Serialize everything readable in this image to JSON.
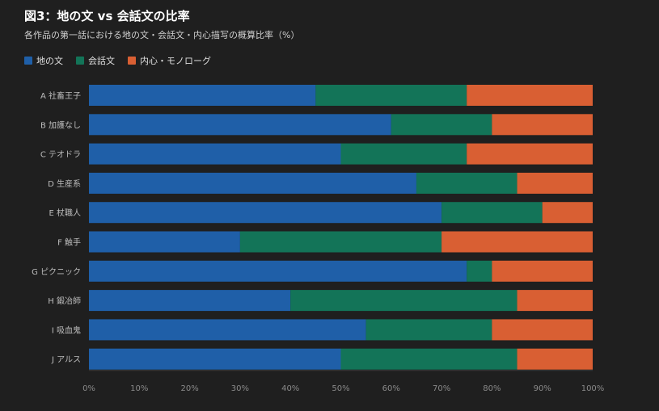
{
  "title": "図3：地の文 vs 会話文の比率",
  "subtitle": "各作品の第一話における地の文・会話文・内心描写の概算比率（%）",
  "colors": {
    "narration": "#1f5fa8",
    "dialogue": "#137458",
    "monologue": "#d95f33"
  },
  "chart_data": {
    "type": "bar",
    "orientation": "horizontal",
    "stacked": true,
    "title": "図3：地の文 vs 会話文の比率",
    "subtitle": "各作品の第一話における地の文・会話文・内心描写の概算比率（%）",
    "categories": [
      "A 社畜王子",
      "B 加護なし",
      "C テオドラ",
      "D 生産系",
      "E 杖職人",
      "F 触手",
      "G ピクニック",
      "H 鍛冶師",
      "I 吸血鬼",
      "J アルス"
    ],
    "series": [
      {
        "name": "地の文",
        "color_key": "narration",
        "values": [
          45,
          60,
          50,
          65,
          70,
          30,
          75,
          40,
          55,
          50
        ]
      },
      {
        "name": "会話文",
        "color_key": "dialogue",
        "values": [
          30,
          20,
          25,
          20,
          20,
          40,
          5,
          45,
          25,
          35
        ]
      },
      {
        "name": "内心・モノローグ",
        "color_key": "monologue",
        "values": [
          25,
          20,
          25,
          15,
          10,
          30,
          20,
          15,
          20,
          15
        ]
      }
    ],
    "xlim": [
      0,
      100
    ],
    "xticks": [
      "0%",
      "10%",
      "20%",
      "30%",
      "40%",
      "50%",
      "60%",
      "70%",
      "80%",
      "90%",
      "100%"
    ],
    "legend_position": "top-left",
    "grid": false
  }
}
